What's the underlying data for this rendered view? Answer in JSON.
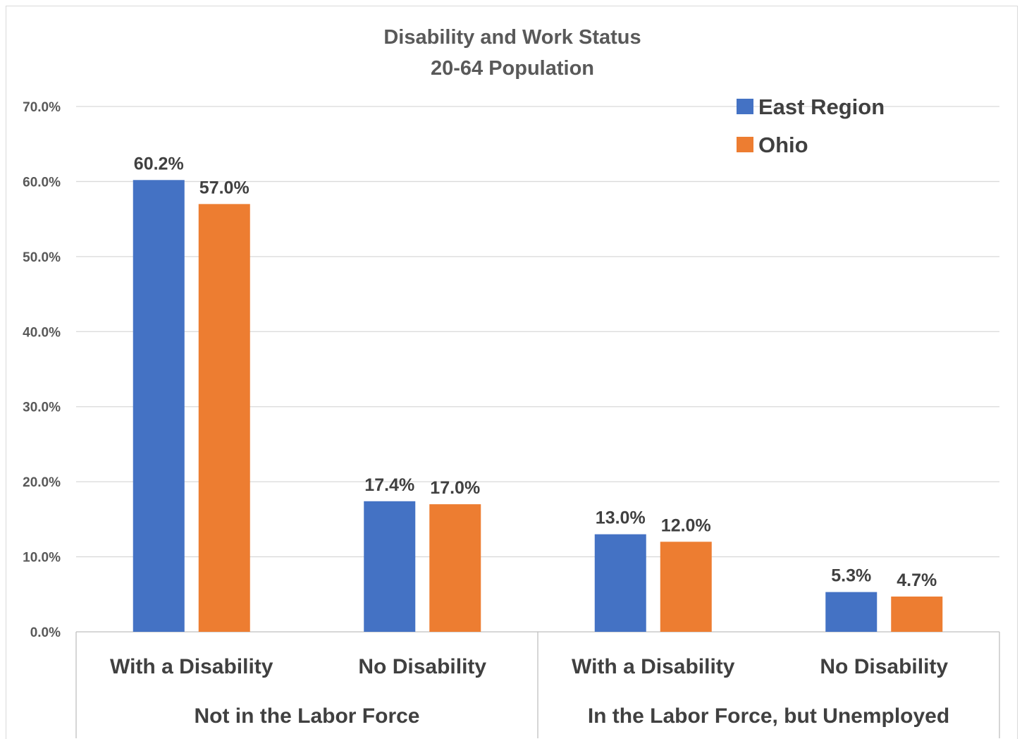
{
  "chart_data": {
    "type": "bar",
    "title": "Disability and Work Status",
    "subtitle": "20-64 Population",
    "groups": [
      {
        "label": "Not in the Labor Force",
        "categories": [
          "With a Disability",
          "No Disability"
        ]
      },
      {
        "label": "In the Labor Force, but Unemployed",
        "categories": [
          "With a Disability",
          "No Disability"
        ]
      }
    ],
    "categories": [
      "With a Disability",
      "No Disability",
      "With a Disability",
      "No Disability"
    ],
    "series": [
      {
        "name": "East Region",
        "color": "#4472c4",
        "values": [
          60.2,
          17.4,
          13.0,
          5.3
        ],
        "data_labels": [
          "60.2%",
          "17.4%",
          "13.0%",
          "5.3%"
        ]
      },
      {
        "name": "Ohio",
        "color": "#ed7d31",
        "values": [
          57.0,
          17.0,
          12.0,
          4.7
        ],
        "data_labels": [
          "57.0%",
          "17.0%",
          "12.0%",
          "4.7%"
        ]
      }
    ],
    "ylim": [
      0,
      70
    ],
    "yticks": [
      0,
      10,
      20,
      30,
      40,
      50,
      60,
      70
    ],
    "ytick_labels": [
      "0.0%",
      "10.0%",
      "20.0%",
      "30.0%",
      "40.0%",
      "50.0%",
      "60.0%",
      "70.0%"
    ],
    "xlabel": "",
    "ylabel": "",
    "grid": true,
    "legend_position": "top-right"
  }
}
